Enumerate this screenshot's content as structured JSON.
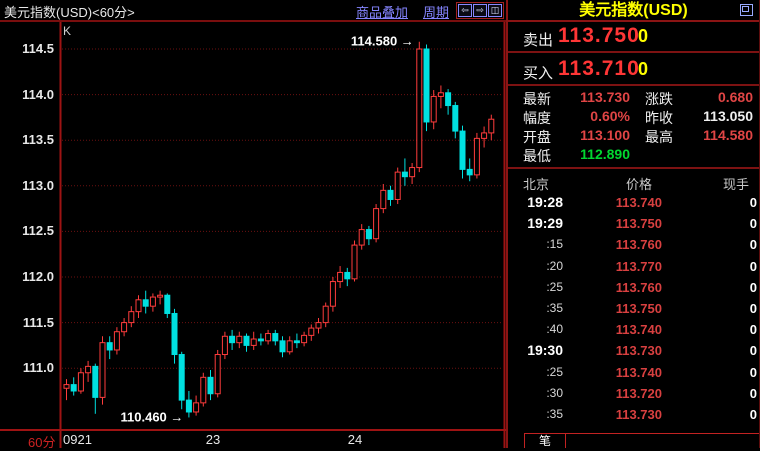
{
  "toolbar": {
    "title": "美元指数(USD)<60分>",
    "overlay_link": "商品叠加",
    "period_link": "周期",
    "icons": {
      "back": "⇦",
      "forward": "⇨",
      "split": "◫"
    }
  },
  "chart": {
    "k_label": "K",
    "period_label": "60分",
    "x_ticks": [
      {
        "label": "0921",
        "x": 63,
        "align": "left"
      },
      {
        "label": "23",
        "x": 213,
        "align": "center"
      },
      {
        "label": "24",
        "x": 355,
        "align": "center"
      }
    ]
  },
  "chart_data": {
    "type": "candlestick",
    "title": "美元指数(USD) 60分K线",
    "ylabel": "价格",
    "y_ticks": [
      114.5,
      114.0,
      113.5,
      113.0,
      112.5,
      112.0,
      111.5,
      111.0
    ],
    "ylim": [
      110.4,
      114.7
    ],
    "x_tick_labels": [
      "0921",
      "23",
      "24"
    ],
    "grid": "dotted-red-horizontal",
    "up_color": "#ff3c3c",
    "down_color": "#00e0e0",
    "grid_color": "#6b1111",
    "axis_color": "#9e1313",
    "marked_high": "114.580",
    "marked_low": "110.460",
    "annotations": [
      {
        "text": "114.580",
        "candle_index": 49,
        "at": "high"
      },
      {
        "text": "110.460",
        "candle_index": 17,
        "at": "low"
      }
    ],
    "candles": [
      [
        110.78,
        110.88,
        110.65,
        110.82
      ],
      [
        110.82,
        110.9,
        110.7,
        110.75
      ],
      [
        110.75,
        111.0,
        110.72,
        110.95
      ],
      [
        110.95,
        111.08,
        110.85,
        111.02
      ],
      [
        111.02,
        111.05,
        110.5,
        110.68
      ],
      [
        110.68,
        111.35,
        110.6,
        111.28
      ],
      [
        111.28,
        111.35,
        111.1,
        111.2
      ],
      [
        111.2,
        111.45,
        111.15,
        111.4
      ],
      [
        111.4,
        111.55,
        111.35,
        111.5
      ],
      [
        111.5,
        111.68,
        111.45,
        111.62
      ],
      [
        111.62,
        111.8,
        111.55,
        111.75
      ],
      [
        111.75,
        111.85,
        111.6,
        111.68
      ],
      [
        111.68,
        111.82,
        111.62,
        111.78
      ],
      [
        111.78,
        111.85,
        111.7,
        111.8
      ],
      [
        111.8,
        111.82,
        111.55,
        111.6
      ],
      [
        111.6,
        111.65,
        111.05,
        111.15
      ],
      [
        111.15,
        111.18,
        110.55,
        110.65
      ],
      [
        110.65,
        110.75,
        110.46,
        110.52
      ],
      [
        110.52,
        110.7,
        110.48,
        110.62
      ],
      [
        110.62,
        110.95,
        110.58,
        110.9
      ],
      [
        110.9,
        110.98,
        110.65,
        110.72
      ],
      [
        110.72,
        111.2,
        110.68,
        111.15
      ],
      [
        111.15,
        111.4,
        111.1,
        111.35
      ],
      [
        111.35,
        111.42,
        111.2,
        111.28
      ],
      [
        111.28,
        111.4,
        111.22,
        111.35
      ],
      [
        111.35,
        111.38,
        111.18,
        111.25
      ],
      [
        111.25,
        111.4,
        111.2,
        111.32
      ],
      [
        111.32,
        111.38,
        111.25,
        111.3
      ],
      [
        111.3,
        111.42,
        111.26,
        111.38
      ],
      [
        111.38,
        111.42,
        111.25,
        111.3
      ],
      [
        111.3,
        111.35,
        111.12,
        111.18
      ],
      [
        111.18,
        111.35,
        111.15,
        111.3
      ],
      [
        111.3,
        111.38,
        111.22,
        111.28
      ],
      [
        111.28,
        111.4,
        111.24,
        111.36
      ],
      [
        111.36,
        111.48,
        111.3,
        111.44
      ],
      [
        111.44,
        111.55,
        111.38,
        111.5
      ],
      [
        111.5,
        111.72,
        111.45,
        111.68
      ],
      [
        111.68,
        112.0,
        111.62,
        111.95
      ],
      [
        111.95,
        112.12,
        111.88,
        112.05
      ],
      [
        112.05,
        112.1,
        111.9,
        111.98
      ],
      [
        111.98,
        112.4,
        111.95,
        112.35
      ],
      [
        112.35,
        112.58,
        112.3,
        112.52
      ],
      [
        112.52,
        112.56,
        112.35,
        112.42
      ],
      [
        112.42,
        112.8,
        112.38,
        112.75
      ],
      [
        112.75,
        113.02,
        112.7,
        112.95
      ],
      [
        112.95,
        113.0,
        112.78,
        112.85
      ],
      [
        112.85,
        113.2,
        112.8,
        113.15
      ],
      [
        113.15,
        113.3,
        113.0,
        113.1
      ],
      [
        113.1,
        113.25,
        113.02,
        113.2
      ],
      [
        113.2,
        114.58,
        113.15,
        114.5
      ],
      [
        114.5,
        114.55,
        113.6,
        113.7
      ],
      [
        113.7,
        114.05,
        113.62,
        113.98
      ],
      [
        113.98,
        114.1,
        113.85,
        114.02
      ],
      [
        114.02,
        114.06,
        113.78,
        113.88
      ],
      [
        113.88,
        113.92,
        113.52,
        113.6
      ],
      [
        113.6,
        113.66,
        113.08,
        113.18
      ],
      [
        113.18,
        113.3,
        113.05,
        113.12
      ],
      [
        113.12,
        113.58,
        113.08,
        113.52
      ],
      [
        113.52,
        113.65,
        113.42,
        113.58
      ],
      [
        113.58,
        113.78,
        113.5,
        113.73
      ]
    ]
  },
  "quote_panel": {
    "title": "美元指数(USD)",
    "sell": {
      "label": "卖出",
      "value": "113.750",
      "size": "0"
    },
    "buy": {
      "label": "买入",
      "value": "113.710",
      "size": "0"
    },
    "palette": {
      "red": "#e04545",
      "white": "#f0f0f0",
      "green": "#00d830"
    },
    "stats": [
      {
        "label": "最新",
        "value": "113.730",
        "color": "red"
      },
      {
        "label": "涨跌",
        "value": "0.680",
        "color": "red"
      },
      {
        "label": "幅度",
        "value": "0.60%",
        "color": "red"
      },
      {
        "label": "昨收",
        "value": "113.050",
        "color": "white"
      },
      {
        "label": "开盘",
        "value": "113.100",
        "color": "red"
      },
      {
        "label": "最高",
        "value": "114.580",
        "color": "red"
      },
      {
        "label": "最低",
        "value": "112.890",
        "color": "green"
      }
    ],
    "table": {
      "headers": [
        "北京",
        "价格",
        "现手"
      ],
      "rows": [
        {
          "time": "19:28",
          "price": "113.740",
          "vol": "0"
        },
        {
          "time": "19:29",
          "price": "113.750",
          "vol": "0"
        },
        {
          "time": ":15",
          "price": "113.760",
          "vol": "0"
        },
        {
          "time": ":20",
          "price": "113.770",
          "vol": "0"
        },
        {
          "time": ":25",
          "price": "113.760",
          "vol": "0"
        },
        {
          "time": ":35",
          "price": "113.750",
          "vol": "0"
        },
        {
          "time": ":40",
          "price": "113.740",
          "vol": "0"
        },
        {
          "time": "19:30",
          "price": "113.730",
          "vol": "0"
        },
        {
          "time": ":25",
          "price": "113.740",
          "vol": "0"
        },
        {
          "time": ":30",
          "price": "113.720",
          "vol": "0"
        },
        {
          "time": ":35",
          "price": "113.730",
          "vol": "0"
        }
      ]
    },
    "tab_label": "笔"
  }
}
